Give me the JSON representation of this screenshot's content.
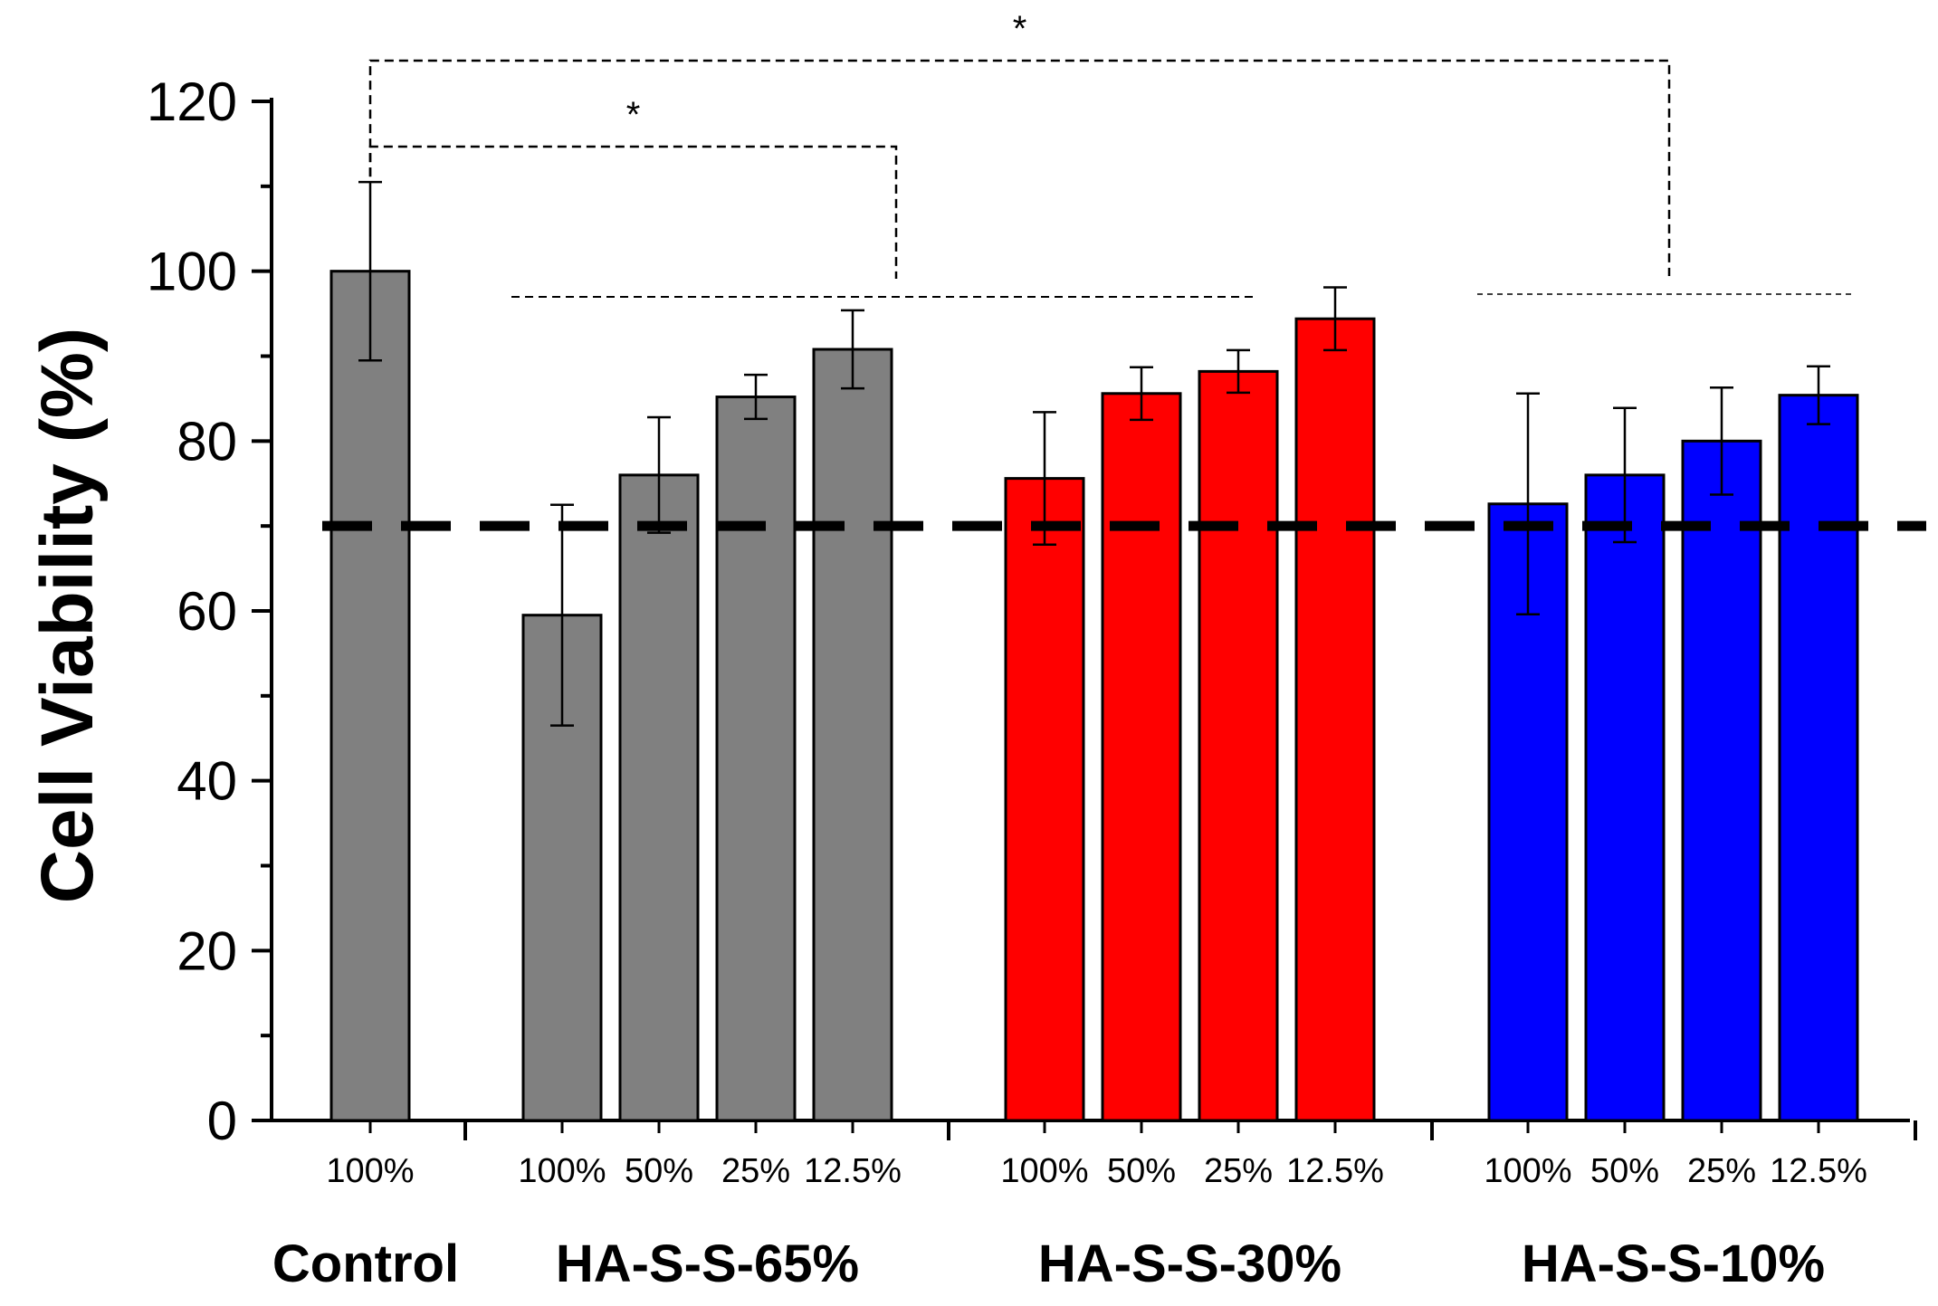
{
  "chart_data": {
    "type": "bar",
    "ylabel": "Cell Viability (%)",
    "xlabel": "",
    "ylim": [
      0,
      120
    ],
    "yticks": [
      0,
      20,
      40,
      60,
      80,
      100,
      120
    ],
    "threshold": 70,
    "groups": [
      {
        "name": "Control",
        "color": "#808080",
        "categories": [
          "100%"
        ],
        "values": [
          100
        ],
        "errors": [
          10.5
        ]
      },
      {
        "name": "HA-S-S-65%",
        "color": "#808080",
        "categories": [
          "100%",
          "50%",
          "25%",
          "12.5%"
        ],
        "values": [
          59.5,
          76,
          85.2,
          90.8
        ],
        "errors": [
          13,
          6.8,
          2.6,
          4.6
        ]
      },
      {
        "name": "HA-S-S-30%",
        "color": "#ff0000",
        "categories": [
          "100%",
          "50%",
          "25%",
          "12.5%"
        ],
        "values": [
          75.6,
          85.6,
          88.2,
          94.4
        ],
        "errors": [
          7.8,
          3.1,
          2.5,
          3.7
        ]
      },
      {
        "name": "HA-S-S-10%",
        "color": "#0000ff",
        "categories": [
          "100%",
          "50%",
          "25%",
          "12.5%"
        ],
        "values": [
          72.6,
          76,
          80,
          85.4
        ],
        "errors": [
          13,
          7.9,
          6.3,
          3.4
        ]
      }
    ],
    "significance": [
      {
        "label": "*",
        "from": "Control",
        "to": "HA-S-S-65%"
      },
      {
        "label": "*",
        "from": "Control",
        "to": "HA-S-S-10%"
      }
    ]
  }
}
